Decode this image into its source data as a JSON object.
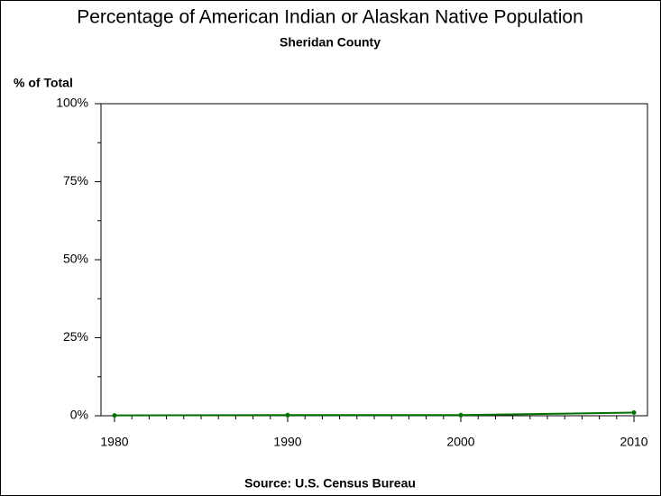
{
  "chart_data": {
    "type": "line",
    "title": "Percentage of American Indian or Alaskan Native Population",
    "subtitle": "Sheridan County",
    "y_label": "% of Total",
    "source": "Source: U.S. Census Bureau",
    "x": [
      1980,
      1990,
      2000,
      2010
    ],
    "series": [
      {
        "color": "#007000",
        "values": [
          0.1,
          0.2,
          0.2,
          1.0
        ]
      }
    ],
    "xlim": [
      1979.22,
      2010.78
    ],
    "xticks": [
      1980,
      1990,
      2000,
      2010
    ],
    "xminorticks": [
      1981,
      1982,
      1983,
      1984,
      1985,
      1986,
      1987,
      1988,
      1989,
      1991,
      1992,
      1993,
      1994,
      1995,
      1996,
      1997,
      1998,
      1999,
      2001,
      2002,
      2003,
      2004,
      2005,
      2006,
      2007,
      2008,
      2009
    ],
    "ylim": [
      0,
      100
    ],
    "yticks": [
      {
        "value": 0,
        "label": "0%"
      },
      {
        "value": 25,
        "label": "25%"
      },
      {
        "value": 50,
        "label": "50%"
      },
      {
        "value": 75,
        "label": "75%"
      },
      {
        "value": 100,
        "label": "100%"
      }
    ],
    "yminorticks": [
      12.5,
      37.5,
      62.5,
      87.5
    ]
  }
}
